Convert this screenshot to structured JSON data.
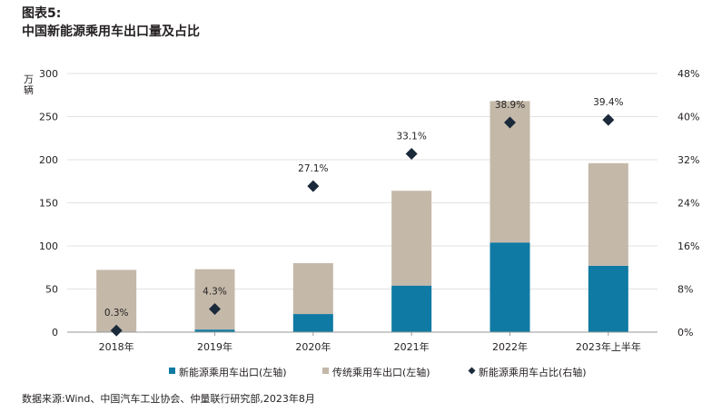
{
  "figure_label": "图表5:",
  "title": "中国新能源乘用车出口量及占比",
  "source": "数据来源:Wind、中国汽车工业协会、仲量联行研究部,2023年8月",
  "colors": {
    "nev": "#0f7aa3",
    "traditional": "#c4b8a9",
    "share": "#1b2a3a",
    "axis": "#9a9a9a",
    "grid": "#e2e2e2"
  },
  "chart_data": {
    "type": "bar",
    "stacked": true,
    "categories": [
      "2018年",
      "2019年",
      "2020年",
      "2021年",
      "2022年",
      "2023年上半年"
    ],
    "series": [
      {
        "name": "新能源乘用车出口(左轴)",
        "axis": "left",
        "values": [
          0.2,
          3,
          21,
          54,
          104,
          77
        ]
      },
      {
        "name": "传统乘用车出口(左轴)",
        "axis": "left",
        "values": [
          72,
          70,
          59,
          110,
          164,
          119
        ]
      },
      {
        "name": "新能源乘用车占比(右轴)",
        "axis": "right",
        "type": "scatter",
        "marker": "diamond",
        "values": [
          0.3,
          4.3,
          27.1,
          33.1,
          38.9,
          39.4
        ],
        "labels": [
          "0.3%",
          "4.3%",
          "27.1%",
          "33.1%",
          "38.9%",
          "39.4%"
        ]
      }
    ],
    "yunit": "万\n辆",
    "ylim_left": [
      0,
      300
    ],
    "yticks_left": [
      "0",
      "50",
      "100",
      "150",
      "200",
      "250",
      "300"
    ],
    "ylim_right": [
      0,
      48
    ],
    "yticks_right": [
      "0%",
      "8%",
      "16%",
      "24%",
      "32%",
      "40%",
      "48%"
    ],
    "legend_position": "bottom"
  }
}
